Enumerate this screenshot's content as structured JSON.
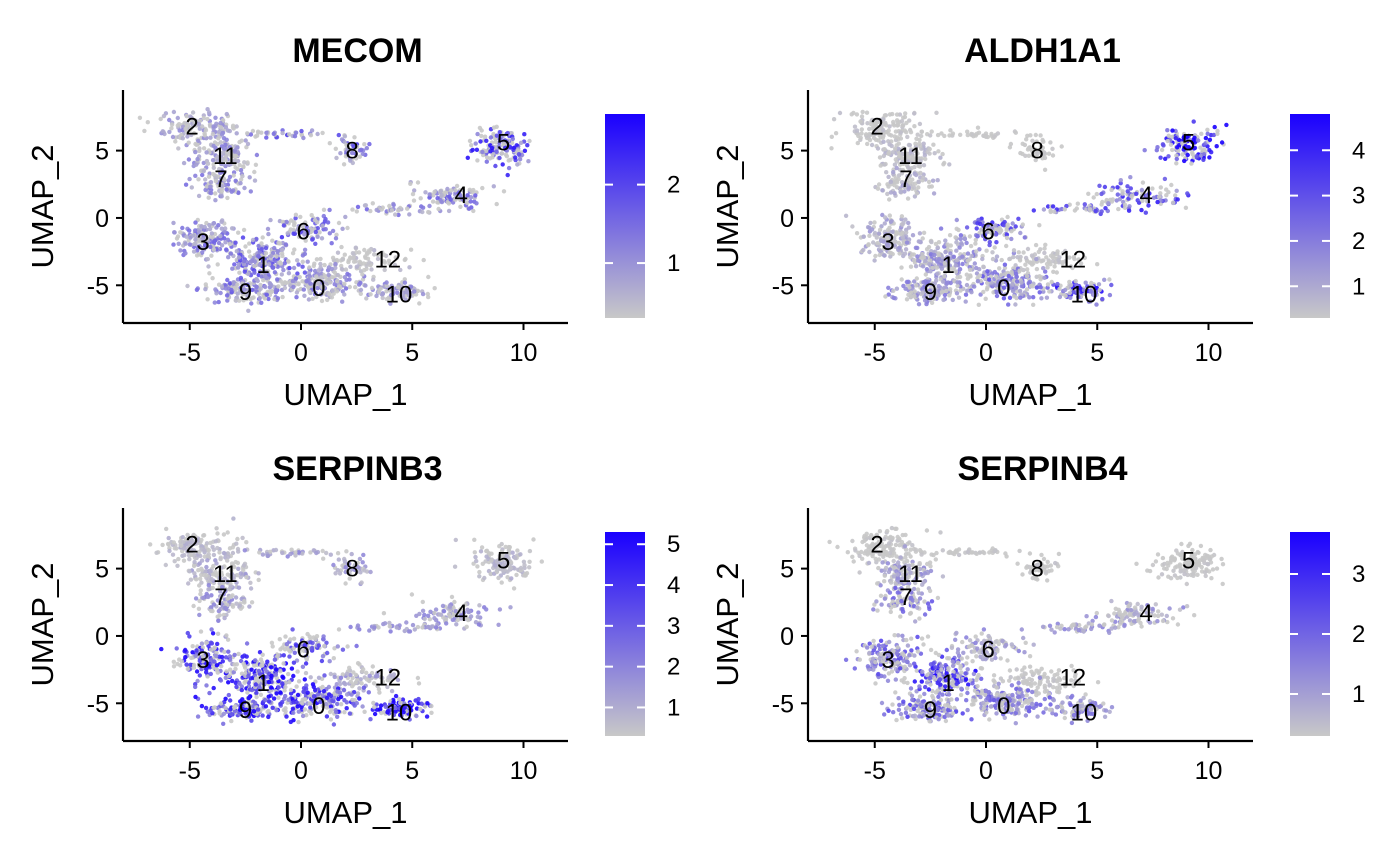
{
  "figure": {
    "xlabel": "UMAP_1",
    "ylabel": "UMAP_2",
    "xticks": [
      "-5",
      "0",
      "5",
      "10"
    ],
    "yticks": [
      "-5",
      "0",
      "5"
    ],
    "xlim": [
      -8,
      12
    ],
    "ylim": [
      -7.8,
      9.5
    ],
    "colors": {
      "low": "#c8c8c8",
      "high": "#1a00ff",
      "axis": "#000000",
      "text": "#000000"
    }
  },
  "chart_data": [
    {
      "type": "scatter",
      "title": "MECOM",
      "xlabel": "UMAP_1",
      "ylabel": "UMAP_2",
      "xlim": [
        -8,
        12
      ],
      "ylim": [
        -7.8,
        9.5
      ],
      "colorbar": {
        "min": 0.3,
        "max": 2.9,
        "ticks": [
          1,
          2
        ],
        "tick_labels": [
          "1",
          "2"
        ]
      },
      "cluster_labels": [
        {
          "label": "2",
          "x": -4.9,
          "y": 6.8
        },
        {
          "label": "11",
          "x": -3.4,
          "y": 4.6
        },
        {
          "label": "7",
          "x": -3.6,
          "y": 2.9
        },
        {
          "label": "8",
          "x": 2.3,
          "y": 5.0
        },
        {
          "label": "5",
          "x": 9.1,
          "y": 5.6
        },
        {
          "label": "4",
          "x": 7.2,
          "y": 1.7
        },
        {
          "label": "6",
          "x": 0.1,
          "y": -1.0
        },
        {
          "label": "3",
          "x": -4.4,
          "y": -1.8
        },
        {
          "label": "1",
          "x": -1.7,
          "y": -3.5
        },
        {
          "label": "12",
          "x": 3.9,
          "y": -3.1
        },
        {
          "label": "9",
          "x": -2.5,
          "y": -5.5
        },
        {
          "label": "0",
          "x": 0.8,
          "y": -5.2
        },
        {
          "label": "10",
          "x": 4.4,
          "y": -5.7
        }
      ],
      "expression_hotspots": [
        {
          "cluster": "2",
          "level": 0.8
        },
        {
          "cluster": "11",
          "level": 0.9
        },
        {
          "cluster": "7",
          "level": 1.0
        },
        {
          "cluster": "8",
          "level": 1.3
        },
        {
          "cluster": "5",
          "level": 1.8
        },
        {
          "cluster": "4",
          "level": 1.2
        },
        {
          "cluster": "6",
          "level": 1.5
        },
        {
          "cluster": "3",
          "level": 1.1
        },
        {
          "cluster": "1",
          "level": 1.4
        },
        {
          "cluster": "9",
          "level": 1.2
        },
        {
          "cluster": "0",
          "level": 1.0
        },
        {
          "cluster": "10",
          "level": 0.9
        },
        {
          "cluster": "12",
          "level": 0.4
        }
      ]
    },
    {
      "type": "scatter",
      "title": "ALDH1A1",
      "xlabel": "UMAP_1",
      "ylabel": "UMAP_2",
      "xlim": [
        -8,
        12
      ],
      "ylim": [
        -7.8,
        9.5
      ],
      "colorbar": {
        "min": 0.3,
        "max": 4.8,
        "ticks": [
          1,
          2,
          3,
          4
        ],
        "tick_labels": [
          "1",
          "2",
          "3",
          "4"
        ]
      },
      "cluster_labels": [
        {
          "label": "2",
          "x": -4.9,
          "y": 6.8
        },
        {
          "label": "11",
          "x": -3.4,
          "y": 4.6
        },
        {
          "label": "7",
          "x": -3.6,
          "y": 2.9
        },
        {
          "label": "8",
          "x": 2.3,
          "y": 5.0
        },
        {
          "label": "5",
          "x": 9.1,
          "y": 5.6
        },
        {
          "label": "4",
          "x": 7.2,
          "y": 1.7
        },
        {
          "label": "6",
          "x": 0.1,
          "y": -1.0
        },
        {
          "label": "3",
          "x": -4.4,
          "y": -1.8
        },
        {
          "label": "1",
          "x": -1.7,
          "y": -3.5
        },
        {
          "label": "12",
          "x": 3.9,
          "y": -3.1
        },
        {
          "label": "9",
          "x": -2.5,
          "y": -5.5
        },
        {
          "label": "0",
          "x": 0.8,
          "y": -5.2
        },
        {
          "label": "10",
          "x": 4.4,
          "y": -5.7
        }
      ],
      "expression_hotspots": [
        {
          "cluster": "2",
          "level": 0.4
        },
        {
          "cluster": "11",
          "level": 0.6
        },
        {
          "cluster": "7",
          "level": 0.8
        },
        {
          "cluster": "8",
          "level": 0.3
        },
        {
          "cluster": "5",
          "level": 3.8
        },
        {
          "cluster": "4",
          "level": 2.8
        },
        {
          "cluster": "6",
          "level": 2.6
        },
        {
          "cluster": "3",
          "level": 1.0
        },
        {
          "cluster": "1",
          "level": 1.4
        },
        {
          "cluster": "9",
          "level": 1.5
        },
        {
          "cluster": "0",
          "level": 2.0
        },
        {
          "cluster": "10",
          "level": 3.2
        },
        {
          "cluster": "12",
          "level": 0.4
        }
      ]
    },
    {
      "type": "scatter",
      "title": "SERPINB3",
      "xlabel": "UMAP_1",
      "ylabel": "UMAP_2",
      "xlim": [
        -8,
        12
      ],
      "ylim": [
        -7.8,
        9.5
      ],
      "colorbar": {
        "min": 0.3,
        "max": 5.3,
        "ticks": [
          1,
          2,
          3,
          4,
          5
        ],
        "tick_labels": [
          "1",
          "2",
          "3",
          "4",
          "5"
        ]
      },
      "cluster_labels": [
        {
          "label": "2",
          "x": -4.9,
          "y": 6.8
        },
        {
          "label": "11",
          "x": -3.4,
          "y": 4.6
        },
        {
          "label": "7",
          "x": -3.6,
          "y": 2.9
        },
        {
          "label": "8",
          "x": 2.3,
          "y": 5.0
        },
        {
          "label": "5",
          "x": 9.1,
          "y": 5.6
        },
        {
          "label": "4",
          "x": 7.2,
          "y": 1.7
        },
        {
          "label": "6",
          "x": 0.1,
          "y": -1.0
        },
        {
          "label": "3",
          "x": -4.4,
          "y": -1.8
        },
        {
          "label": "1",
          "x": -1.7,
          "y": -3.5
        },
        {
          "label": "12",
          "x": 3.9,
          "y": -3.1
        },
        {
          "label": "9",
          "x": -2.5,
          "y": -5.5
        },
        {
          "label": "0",
          "x": 0.8,
          "y": -5.2
        },
        {
          "label": "10",
          "x": 4.4,
          "y": -5.7
        }
      ],
      "expression_hotspots": [
        {
          "cluster": "2",
          "level": 0.7
        },
        {
          "cluster": "11",
          "level": 1.0
        },
        {
          "cluster": "7",
          "level": 1.4
        },
        {
          "cluster": "8",
          "level": 1.3
        },
        {
          "cluster": "5",
          "level": 0.7
        },
        {
          "cluster": "4",
          "level": 1.6
        },
        {
          "cluster": "6",
          "level": 2.8
        },
        {
          "cluster": "3",
          "level": 3.6
        },
        {
          "cluster": "1",
          "level": 4.4
        },
        {
          "cluster": "9",
          "level": 4.0
        },
        {
          "cluster": "0",
          "level": 3.6
        },
        {
          "cluster": "10",
          "level": 4.6
        },
        {
          "cluster": "12",
          "level": 1.2
        }
      ]
    },
    {
      "type": "scatter",
      "title": "SERPINB4",
      "xlabel": "UMAP_1",
      "ylabel": "UMAP_2",
      "xlim": [
        -8,
        12
      ],
      "ylim": [
        -7.8,
        9.5
      ],
      "colorbar": {
        "min": 0.3,
        "max": 3.7,
        "ticks": [
          1,
          2,
          3
        ],
        "tick_labels": [
          "1",
          "2",
          "3"
        ]
      },
      "cluster_labels": [
        {
          "label": "2",
          "x": -4.9,
          "y": 6.8
        },
        {
          "label": "11",
          "x": -3.4,
          "y": 4.6
        },
        {
          "label": "7",
          "x": -3.6,
          "y": 2.9
        },
        {
          "label": "8",
          "x": 2.3,
          "y": 5.0
        },
        {
          "label": "5",
          "x": 9.1,
          "y": 5.6
        },
        {
          "label": "4",
          "x": 7.2,
          "y": 1.7
        },
        {
          "label": "6",
          "x": 0.1,
          "y": -1.0
        },
        {
          "label": "3",
          "x": -4.4,
          "y": -1.8
        },
        {
          "label": "1",
          "x": -1.7,
          "y": -3.5
        },
        {
          "label": "12",
          "x": 3.9,
          "y": -3.1
        },
        {
          "label": "9",
          "x": -2.5,
          "y": -5.5
        },
        {
          "label": "0",
          "x": 0.8,
          "y": -5.2
        },
        {
          "label": "10",
          "x": 4.4,
          "y": -5.7
        }
      ],
      "expression_hotspots": [
        {
          "cluster": "2",
          "level": 0.3
        },
        {
          "cluster": "11",
          "level": 0.9
        },
        {
          "cluster": "7",
          "level": 1.6
        },
        {
          "cluster": "8",
          "level": 0.3
        },
        {
          "cluster": "5",
          "level": 0.3
        },
        {
          "cluster": "4",
          "level": 1.0
        },
        {
          "cluster": "6",
          "level": 1.0
        },
        {
          "cluster": "3",
          "level": 1.8
        },
        {
          "cluster": "1",
          "level": 2.6
        },
        {
          "cluster": "9",
          "level": 1.8
        },
        {
          "cluster": "0",
          "level": 1.5
        },
        {
          "cluster": "10",
          "level": 1.4
        },
        {
          "cluster": "12",
          "level": 0.3
        }
      ]
    }
  ]
}
